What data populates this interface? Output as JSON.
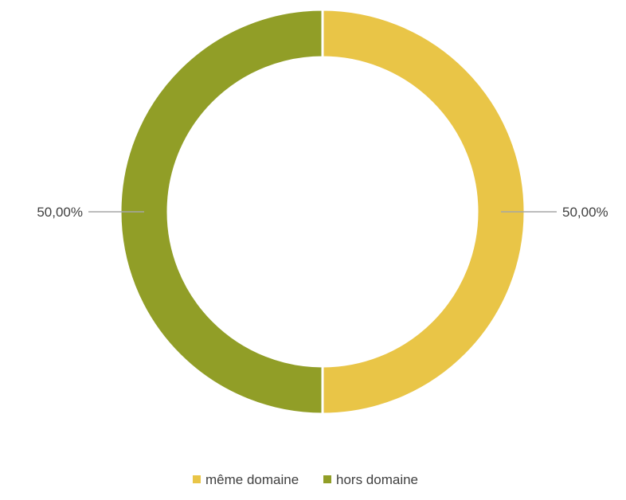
{
  "chart_data": {
    "type": "pie",
    "variant": "donut",
    "categories": [
      "même domaine",
      "hors domaine"
    ],
    "values": [
      50.0,
      50.0
    ],
    "data_labels": [
      "50,00%",
      "50,00%"
    ],
    "colors": [
      "#E9C547",
      "#919E27"
    ],
    "legend_position": "bottom",
    "title": ""
  }
}
